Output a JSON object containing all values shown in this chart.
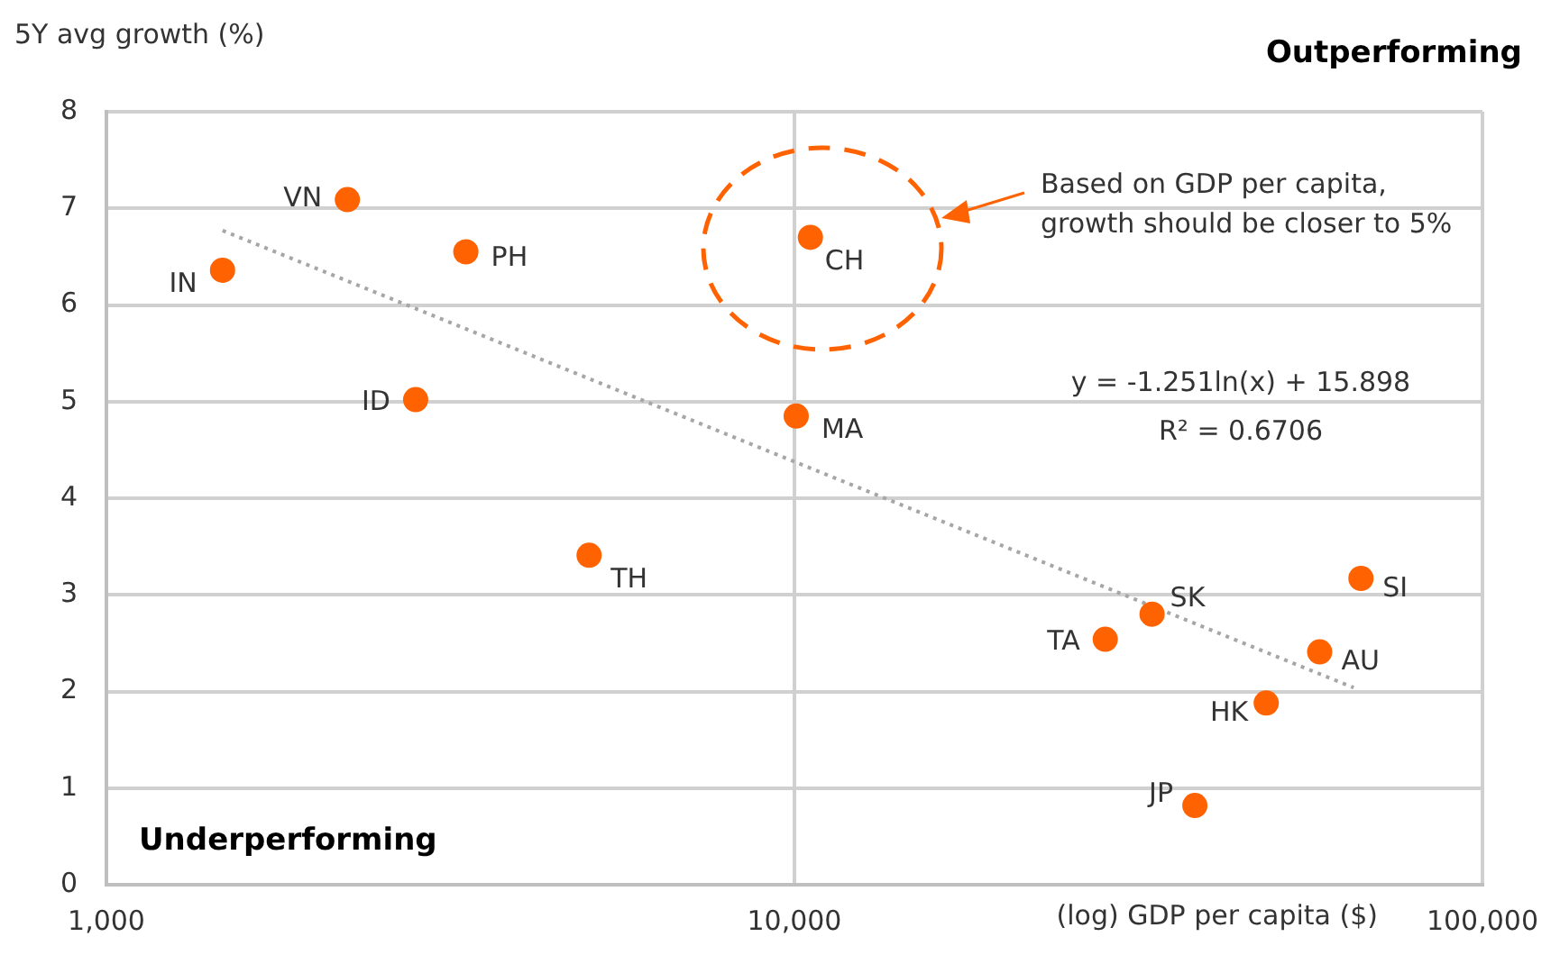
{
  "chart_data": {
    "type": "scatter",
    "xlabel": "(log) GDP per capita ($)",
    "ylabel": "5Y avg growth (%)",
    "annotations": [
      "Outperforming",
      "Underperforming",
      "Based on GDP per capita,\ngrowth should be closer to 5%",
      "y = -1.251ln(x) + 15.898",
      "R² = 0.6706"
    ],
    "log": "x",
    "xlim": [
      1000,
      100000
    ],
    "xticks": [
      {
        "value": 1000,
        "label": "1,000"
      },
      {
        "value": 10000,
        "label": "10,000"
      },
      {
        "value": 100000,
        "label": "100,000"
      }
    ],
    "ylim": [
      0,
      8
    ],
    "yticks": [
      0,
      1,
      2,
      3,
      4,
      5,
      6,
      7,
      8
    ],
    "grid": true,
    "legend": false,
    "marker": "circle",
    "series": [
      {
        "color": "#ff6200",
        "x": [
          1475,
          2240,
          3330,
          2815,
          5030,
          10550,
          10060,
          28300,
          33100,
          66600,
          58000,
          48500,
          38200
        ],
        "values": [
          6.36,
          7.09,
          6.55,
          5.02,
          3.41,
          6.7,
          4.85,
          2.54,
          2.8,
          3.17,
          2.41,
          1.88,
          0.82
        ],
        "value_labels": [
          "IN",
          "VN",
          "PH",
          "ID",
          "TH",
          "CH",
          "MA",
          "TA",
          "SK",
          "SI",
          "AU",
          "HK",
          "JP"
        ]
      },
      {
        "type": "line",
        "color": "#a6a6a6",
        "line_style": "dotted",
        "marker": "none",
        "x": [
          1475,
          65000
        ],
        "values": [
          6.77,
          2.04
        ]
      }
    ]
  }
}
